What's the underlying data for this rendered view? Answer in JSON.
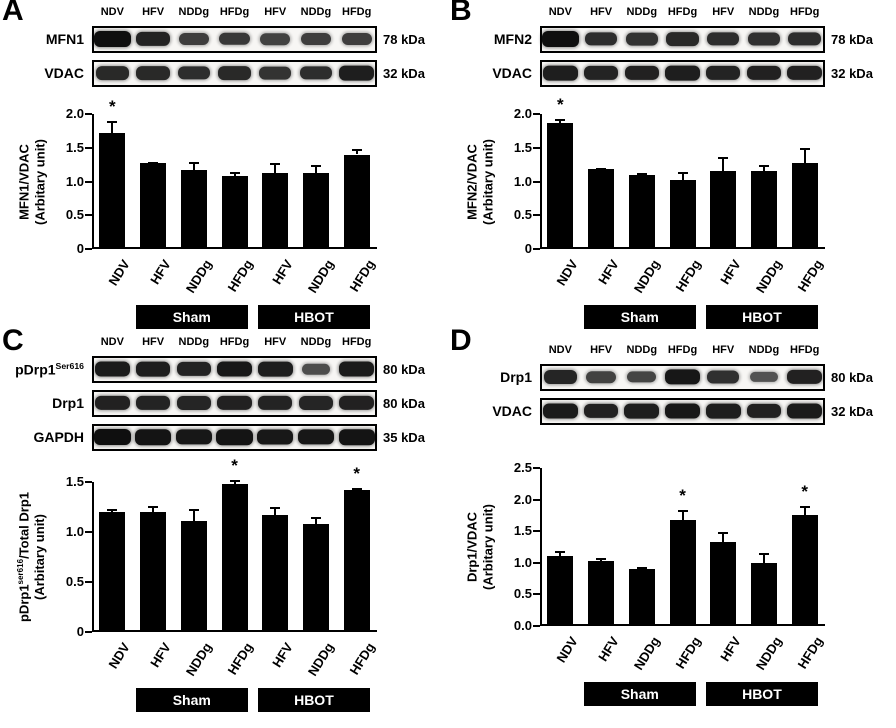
{
  "sig_marker": "*",
  "panels": [
    {
      "id": "A",
      "lane_labels": [
        "NDV",
        "HFV",
        "NDDg",
        "HFDg",
        "HFV",
        "NDDg",
        "HFDg"
      ],
      "blots": [
        {
          "label": "MFN1",
          "label_sup": "",
          "kda": "78 kDa",
          "bands": [
            1.0,
            0.8,
            0.55,
            0.6,
            0.5,
            0.55,
            0.55
          ]
        },
        {
          "label": "VDAC",
          "label_sup": "",
          "kda": "32 kDa",
          "bands": [
            0.75,
            0.75,
            0.7,
            0.75,
            0.65,
            0.7,
            0.85
          ]
        }
      ],
      "chart": 0
    },
    {
      "id": "B",
      "lane_labels": [
        "NDV",
        "HFV",
        "NDDg",
        "HFDg",
        "HFV",
        "NDDg",
        "HFDg"
      ],
      "blots": [
        {
          "label": "MFN2",
          "label_sup": "",
          "kda": "78 kDa",
          "bands": [
            1.0,
            0.7,
            0.65,
            0.75,
            0.7,
            0.68,
            0.7
          ]
        },
        {
          "label": "VDAC",
          "label_sup": "",
          "kda": "32 kDa",
          "bands": [
            0.85,
            0.8,
            0.82,
            0.85,
            0.8,
            0.82,
            0.82
          ]
        }
      ],
      "chart": 1
    },
    {
      "id": "C",
      "lane_labels": [
        "NDV",
        "HFV",
        "NDDg",
        "HFDg",
        "HFV",
        "NDDg",
        "HFDg"
      ],
      "blots": [
        {
          "label": "pDrp1",
          "label_sup": "Ser616",
          "kda": "80 kDa",
          "bands": [
            0.88,
            0.85,
            0.8,
            0.9,
            0.85,
            0.4,
            0.88
          ]
        },
        {
          "label": "Drp1",
          "label_sup": "",
          "kda": "80 kDa",
          "bands": [
            0.82,
            0.8,
            0.78,
            0.82,
            0.8,
            0.78,
            0.82
          ]
        },
        {
          "label": "GAPDH",
          "label_sup": "",
          "kda": "35 kDa",
          "bands": [
            1.0,
            0.95,
            0.92,
            0.95,
            0.9,
            0.92,
            0.95
          ]
        }
      ],
      "chart": 2
    },
    {
      "id": "D",
      "lane_labels": [
        "NDV",
        "HFV",
        "NDDg",
        "HFDg",
        "HFV",
        "NDDg",
        "HFDg"
      ],
      "blots": [
        {
          "label": "Drp1",
          "label_sup": "",
          "kda": "80 kDa",
          "bands": [
            0.78,
            0.5,
            0.48,
            0.92,
            0.68,
            0.35,
            0.82
          ]
        },
        {
          "label": "VDAC",
          "label_sup": "",
          "kda": "32 kDa",
          "bands": [
            0.88,
            0.82,
            0.85,
            0.9,
            0.85,
            0.82,
            0.88
          ]
        }
      ],
      "chart": 3
    }
  ],
  "chart_data": [
    {
      "type": "bar",
      "title": "",
      "categories": [
        "NDV",
        "HFV",
        "NDDg",
        "HFDg",
        "HFV",
        "NDDg",
        "HFDg"
      ],
      "values": [
        1.72,
        1.27,
        1.17,
        1.08,
        1.12,
        1.12,
        1.4
      ],
      "errors": [
        0.18,
        0.02,
        0.12,
        0.06,
        0.15,
        0.13,
        0.08
      ],
      "sig": [
        0
      ],
      "ylim": [
        0,
        2.0
      ],
      "yticks": [
        "0",
        "0.5",
        "1.0",
        "1.5",
        "2.0"
      ],
      "ylabel": {
        "pre": "MFN1/VDAC",
        "sup": "",
        "post": "",
        "unit": "(Arbitary unit)"
      },
      "grid": false,
      "group_spans": [
        {
          "label": "Sham",
          "from": 1,
          "to": 3
        },
        {
          "label": "HBOT",
          "from": 4,
          "to": 6
        }
      ]
    },
    {
      "type": "bar",
      "title": "",
      "categories": [
        "NDV",
        "HFV",
        "NDDg",
        "HFDg",
        "HFV",
        "NDDg",
        "HFDg"
      ],
      "values": [
        1.87,
        1.18,
        1.1,
        1.02,
        1.15,
        1.15,
        1.28
      ],
      "errors": [
        0.06,
        0.02,
        0.02,
        0.12,
        0.22,
        0.1,
        0.22
      ],
      "sig": [
        0
      ],
      "ylim": [
        0,
        2.0
      ],
      "yticks": [
        "0",
        "0.5",
        "1.0",
        "1.5",
        "2.0"
      ],
      "ylabel": {
        "pre": "MFN2/VDAC",
        "sup": "",
        "post": "",
        "unit": "(Arbitary unit)"
      },
      "grid": false,
      "group_spans": [
        {
          "label": "Sham",
          "from": 1,
          "to": 3
        },
        {
          "label": "HBOT",
          "from": 4,
          "to": 6
        }
      ]
    },
    {
      "type": "bar",
      "title": "",
      "categories": [
        "NDV",
        "HFV",
        "NDDg",
        "HFDg",
        "HFV",
        "NDDg",
        "HFDg"
      ],
      "values": [
        1.2,
        1.2,
        1.11,
        1.48,
        1.17,
        1.08,
        1.42
      ],
      "errors": [
        0.03,
        0.06,
        0.12,
        0.04,
        0.08,
        0.07,
        0.02
      ],
      "sig": [
        3,
        6
      ],
      "ylim": [
        0,
        1.5
      ],
      "yticks": [
        "0",
        "0.5",
        "1.0",
        "1.5"
      ],
      "ylabel": {
        "pre": "pDrp1",
        "sup": "ser616",
        "post": "/Total Drp1",
        "unit": "(Arbitary unit)"
      },
      "grid": false,
      "group_spans": [
        {
          "label": "Sham",
          "from": 1,
          "to": 3
        },
        {
          "label": "HBOT",
          "from": 4,
          "to": 6
        }
      ]
    },
    {
      "type": "bar",
      "title": "",
      "categories": [
        "NDV",
        "HFV",
        "NDDg",
        "HFDg",
        "HFV",
        "NDDg",
        "HFDg"
      ],
      "values": [
        1.1,
        1.03,
        0.9,
        1.68,
        1.33,
        1.0,
        1.75
      ],
      "errors": [
        0.08,
        0.04,
        0.04,
        0.15,
        0.15,
        0.15,
        0.15
      ],
      "sig": [
        3,
        6
      ],
      "ylim": [
        0,
        2.5
      ],
      "yticks": [
        "0.0",
        "0.5",
        "1.0",
        "1.5",
        "2.0",
        "2.5"
      ],
      "ylabel": {
        "pre": "Drp1/VDAC",
        "sup": "",
        "post": "",
        "unit": "(Arbitary unit)"
      },
      "grid": false,
      "group_spans": [
        {
          "label": "Sham",
          "from": 1,
          "to": 3
        },
        {
          "label": "HBOT",
          "from": 4,
          "to": 6
        }
      ]
    }
  ]
}
